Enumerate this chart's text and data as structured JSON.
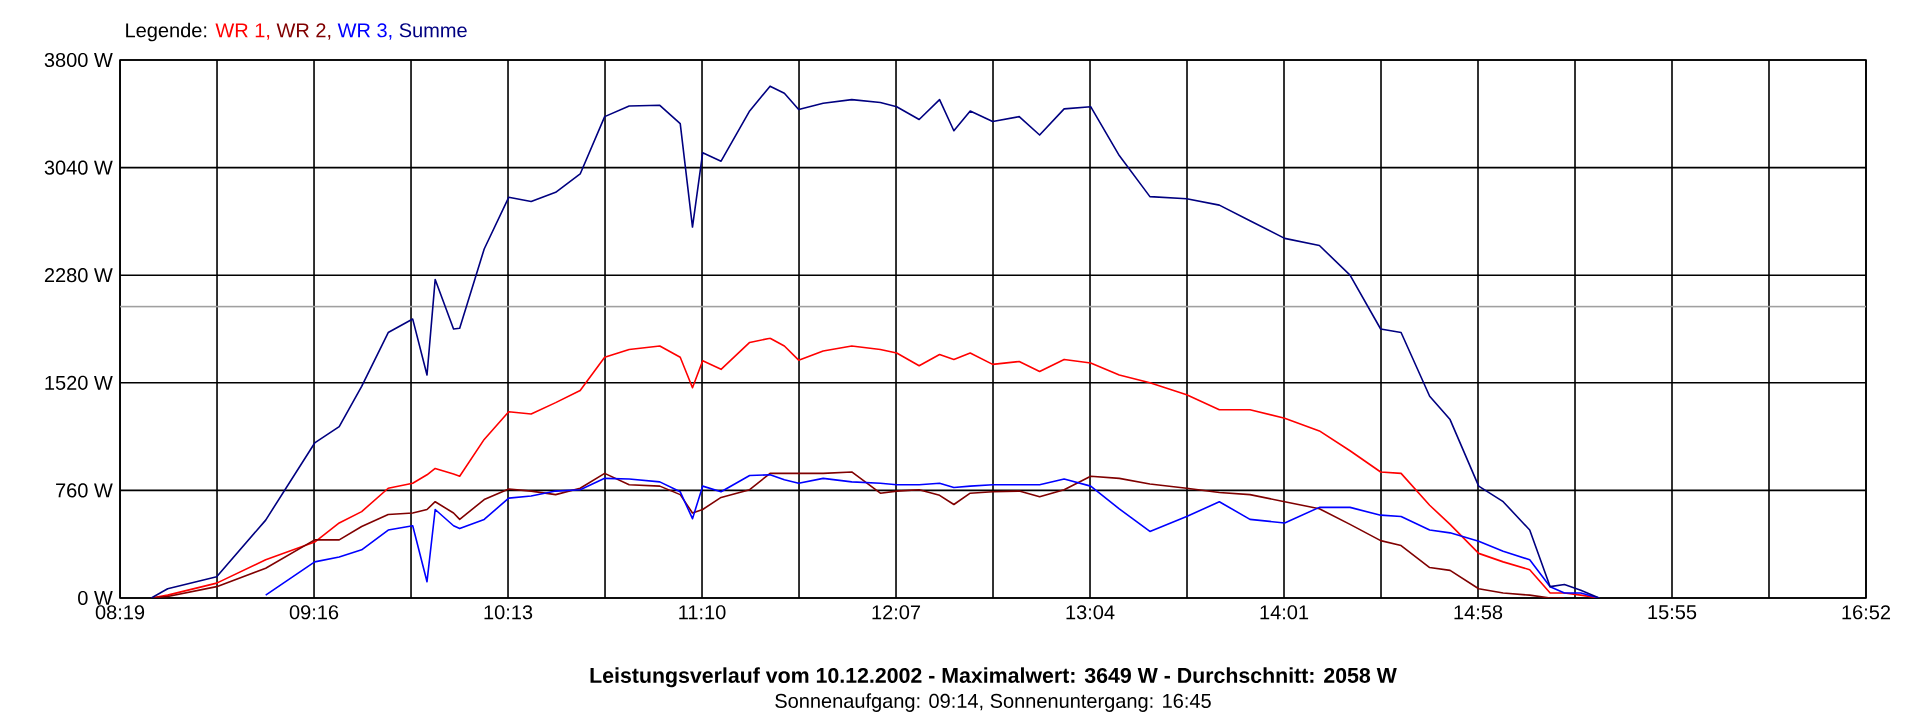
{
  "chart_data": {
    "type": "line",
    "title": "Leistungsverlauf vom 10.12.2002 - Maximalwert: 3649 W - Durchschnitt: 2058 W",
    "subtitle": "Sonnenaufgang: 09:14, Sonnenuntergang: 16:45",
    "legend_title": "Legende:",
    "legend": "top left",
    "grid": true,
    "x": [
      8.47,
      8.55,
      8.79,
      9.03,
      9.27,
      9.39,
      9.5,
      9.63,
      9.75,
      9.82,
      9.86,
      9.95,
      9.98,
      10.1,
      10.22,
      10.33,
      10.45,
      10.57,
      10.69,
      10.81,
      10.96,
      11.06,
      11.12,
      11.17,
      11.26,
      11.4,
      11.5,
      11.57,
      11.64,
      11.76,
      11.9,
      12.04,
      12.12,
      12.23,
      12.33,
      12.4,
      12.48,
      12.59,
      12.72,
      12.82,
      12.94,
      13.07,
      13.21,
      13.36,
      13.54,
      13.7,
      13.85,
      14.02,
      14.19,
      14.34,
      14.49,
      14.59,
      14.73,
      14.83,
      14.97,
      15.09,
      15.22,
      15.32,
      15.39,
      15.47,
      15.56
    ],
    "series": [
      {
        "name": "WR 1,",
        "color": "#ff0000",
        "values": [
          0,
          20,
          105,
          270,
          395,
          530,
          610,
          775,
          810,
          870,
          915,
          875,
          860,
          1120,
          1315,
          1300,
          1380,
          1465,
          1700,
          1755,
          1780,
          1700,
          1485,
          1675,
          1615,
          1805,
          1835,
          1780,
          1680,
          1745,
          1780,
          1755,
          1730,
          1640,
          1720,
          1685,
          1730,
          1650,
          1670,
          1600,
          1685,
          1660,
          1575,
          1520,
          1435,
          1330,
          1330,
          1270,
          1180,
          1040,
          890,
          880,
          655,
          520,
          315,
          255,
          200,
          35,
          35,
          20,
          0
        ]
      },
      {
        "name": "WR 2,",
        "color": "#800000",
        "values": [
          0,
          10,
          80,
          210,
          410,
          410,
          505,
          590,
          600,
          625,
          680,
          600,
          555,
          695,
          770,
          755,
          730,
          775,
          880,
          800,
          790,
          730,
          600,
          625,
          710,
          765,
          880,
          880,
          880,
          880,
          890,
          740,
          755,
          765,
          725,
          660,
          740,
          750,
          755,
          715,
          765,
          860,
          845,
          805,
          775,
          745,
          730,
          680,
          630,
          520,
          405,
          370,
          215,
          195,
          65,
          35,
          20,
          0,
          0,
          null,
          null
        ]
      },
      {
        "name": "WR 3,",
        "color": "#0000ff",
        "values": [
          null,
          null,
          null,
          20,
          255,
          290,
          340,
          480,
          510,
          115,
          625,
          510,
          490,
          555,
          705,
          720,
          755,
          765,
          845,
          840,
          820,
          750,
          560,
          790,
          750,
          865,
          870,
          835,
          810,
          845,
          820,
          810,
          800,
          800,
          810,
          780,
          790,
          800,
          800,
          800,
          840,
          790,
          630,
          470,
          575,
          680,
          555,
          530,
          640,
          640,
          585,
          575,
          480,
          460,
          400,
          330,
          270,
          80,
          35,
          35,
          0
        ]
      },
      {
        "name": "Summe",
        "color": "#000080",
        "values": [
          0,
          65,
          150,
          550,
          1095,
          1210,
          1495,
          1875,
          1970,
          1575,
          2250,
          1900,
          1905,
          2465,
          2830,
          2800,
          2865,
          2995,
          3400,
          3475,
          3480,
          3350,
          2620,
          3145,
          3085,
          3440,
          3615,
          3565,
          3450,
          3495,
          3520,
          3500,
          3470,
          3380,
          3520,
          3300,
          3440,
          3365,
          3400,
          3270,
          3455,
          3470,
          3125,
          2835,
          2820,
          2775,
          2665,
          2540,
          2490,
          2280,
          1900,
          1875,
          1425,
          1260,
          790,
          680,
          480,
          80,
          95,
          55,
          0
        ]
      }
    ],
    "xlim": [
      8.3167,
      16.8667
    ],
    "xticks": [
      {
        "value": 8.3167,
        "label": "08:19"
      },
      {
        "value": 8.7917,
        "label": null
      },
      {
        "value": 9.2667,
        "label": "09:16"
      },
      {
        "value": 9.7417,
        "label": null
      },
      {
        "value": 10.2167,
        "label": "10:13"
      },
      {
        "value": 10.6917,
        "label": null
      },
      {
        "value": 11.1667,
        "label": "11:10"
      },
      {
        "value": 11.6417,
        "label": null
      },
      {
        "value": 12.1167,
        "label": "12:07"
      },
      {
        "value": 12.5917,
        "label": null
      },
      {
        "value": 13.0667,
        "label": "13:04"
      },
      {
        "value": 13.5417,
        "label": null
      },
      {
        "value": 14.0167,
        "label": "14:01"
      },
      {
        "value": 14.4917,
        "label": null
      },
      {
        "value": 14.9667,
        "label": "14:58"
      },
      {
        "value": 15.4417,
        "label": null
      },
      {
        "value": 15.9167,
        "label": "15:55"
      },
      {
        "value": 16.3917,
        "label": null
      },
      {
        "value": 16.8667,
        "label": "16:52"
      }
    ],
    "ylim": [
      0,
      3800
    ],
    "yticks": [
      {
        "value": 0,
        "label": "0 W"
      },
      {
        "value": 760,
        "label": "760 W"
      },
      {
        "value": 1520,
        "label": "1520 W"
      },
      {
        "value": 2280,
        "label": "2280 W"
      },
      {
        "value": 3040,
        "label": "3040 W"
      },
      {
        "value": 3800,
        "label": "3800 W"
      }
    ],
    "ref_lines": [
      {
        "axis": "y",
        "value": 2058,
        "color": "#a0a0a0"
      }
    ]
  }
}
